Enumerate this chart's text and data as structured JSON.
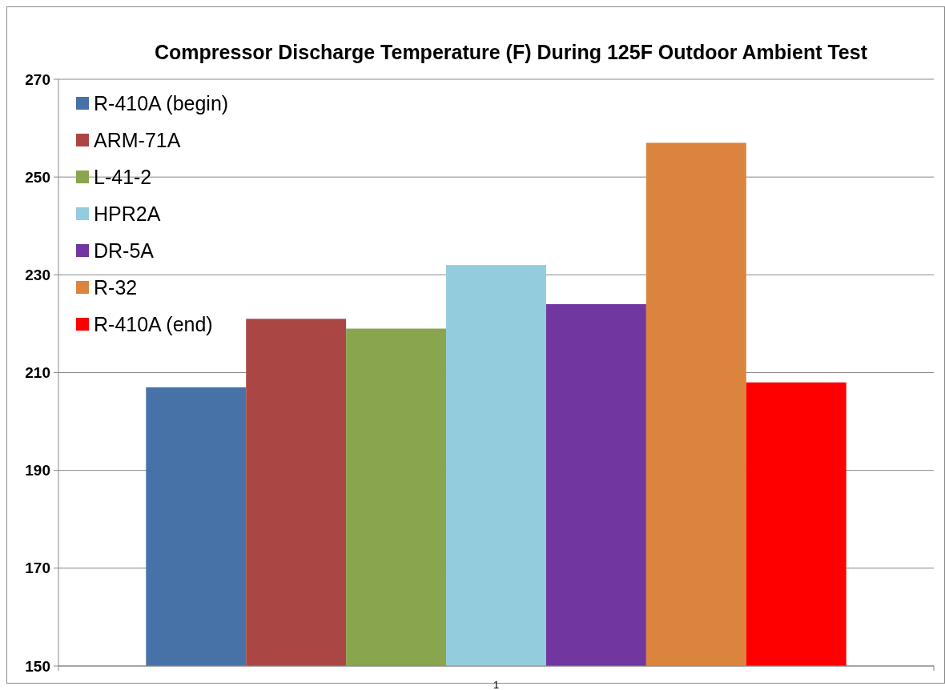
{
  "chart_data": {
    "type": "bar",
    "title": "Compressor Discharge Temperature (F) During 125F Outdoor Ambient Test",
    "categories": [
      "1"
    ],
    "series": [
      {
        "name": "R-410A (begin)",
        "color": "#4672a8",
        "values": [
          207
        ]
      },
      {
        "name": "ARM-71A",
        "color": "#aa4744",
        "values": [
          221
        ]
      },
      {
        "name": "L-41-2",
        "color": "#89a54e",
        "values": [
          219
        ]
      },
      {
        "name": "HPR2A",
        "color": "#93cddd",
        "values": [
          232
        ]
      },
      {
        "name": "DR-5A",
        "color": "#71369f",
        "values": [
          224
        ]
      },
      {
        "name": "R-32",
        "color": "#db843d",
        "values": [
          257
        ]
      },
      {
        "name": "R-410A (end)",
        "color": "#ff0000",
        "values": [
          208
        ]
      }
    ],
    "ylim": [
      150,
      270
    ],
    "yticks": [
      150,
      170,
      190,
      210,
      230,
      250,
      270
    ],
    "grid": "y",
    "legend": "top left"
  }
}
